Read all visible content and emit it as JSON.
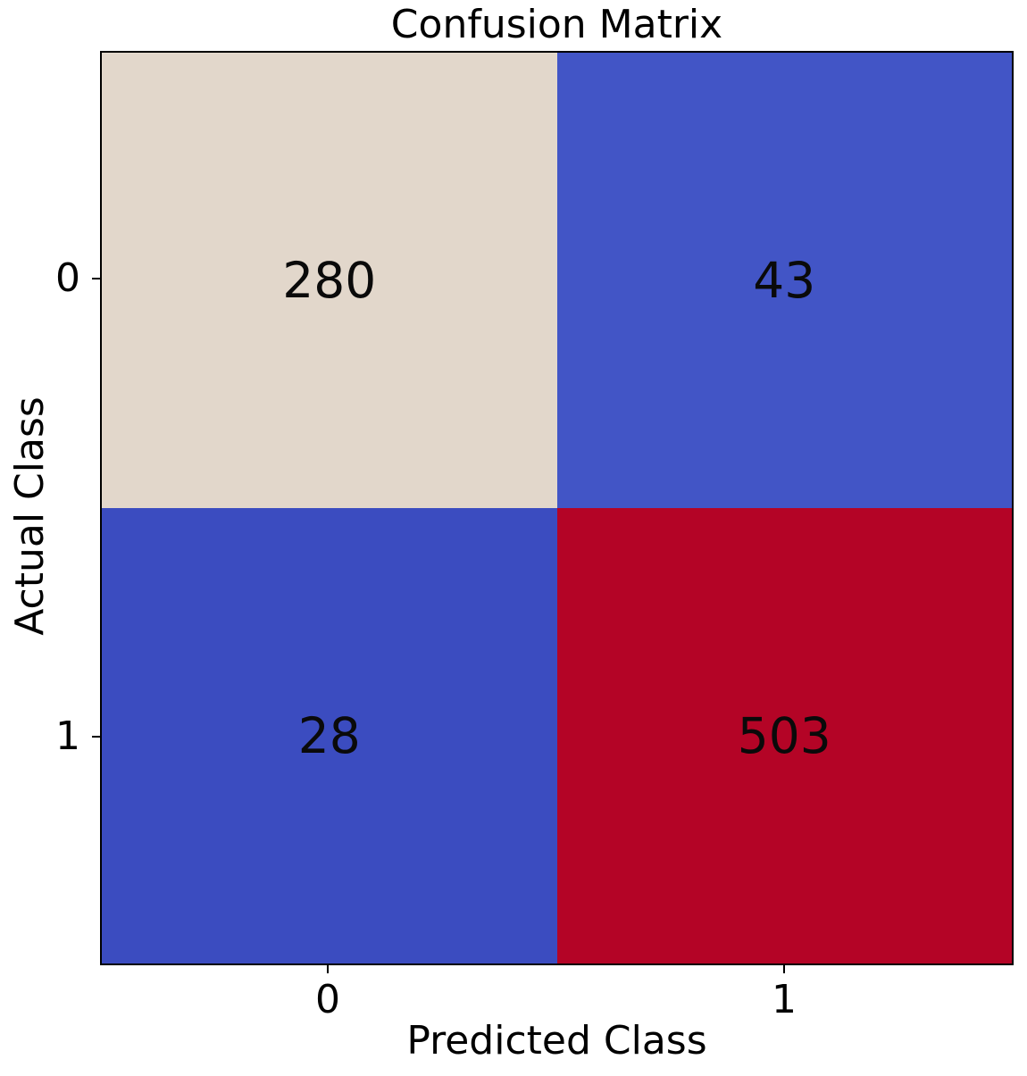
{
  "title": "Confusion Matrix",
  "x_axis_label": "Predicted Class",
  "y_axis_label": "Actual Class",
  "x_ticks": [
    "0",
    "1"
  ],
  "y_ticks": [
    "0",
    "1"
  ],
  "colors": {
    "background": "#ffffff",
    "spine": "#000000",
    "text": "#000000",
    "cell_true_negative": "#e2d7cb",
    "cell_false_positive": "#4255c6",
    "cell_false_negative": "#3b4cc0",
    "cell_true_positive": "#b40426"
  },
  "chart_data": {
    "type": "heatmap",
    "title": "Confusion Matrix",
    "xlabel": "Predicted Class",
    "ylabel": "Actual Class",
    "x_categories": [
      "0",
      "1"
    ],
    "y_categories": [
      "0",
      "1"
    ],
    "matrix": [
      [
        280,
        43
      ],
      [
        28,
        503
      ]
    ],
    "cell_colors": [
      [
        "#e2d7cb",
        "#4255c6"
      ],
      [
        "#3b4cc0",
        "#b40426"
      ]
    ],
    "colormap": "coolwarm",
    "annotations": true,
    "colorbar": false,
    "legend": "none",
    "grid": false
  }
}
